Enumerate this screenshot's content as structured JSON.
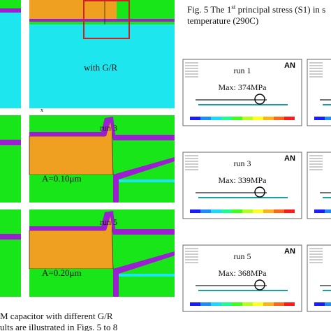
{
  "left_figure": {
    "top_label": "with G/R",
    "axis_label": "x",
    "panels": [
      {
        "run": "run 3",
        "area": "A=0.10μm"
      },
      {
        "run": "run 5",
        "area": "A=0.20μm"
      }
    ],
    "caption": "M capacitor with different G/R"
  },
  "body_text": "ults are illustrated in Figs. 5 to 8",
  "right_figure": {
    "caption": {
      "line1_start": "Fig. 5 The 1",
      "superscript": "st",
      "line1_end": " principal stress (S1) in s",
      "line2": "temperature (290C)"
    },
    "logo": "AN",
    "panels": [
      {
        "run": "run 1",
        "max": "Max: 374MPa"
      },
      {
        "run": "run 3",
        "max": "Max: 339MPa"
      },
      {
        "run": "run 5",
        "max": "Max: 368MPa"
      }
    ]
  }
}
